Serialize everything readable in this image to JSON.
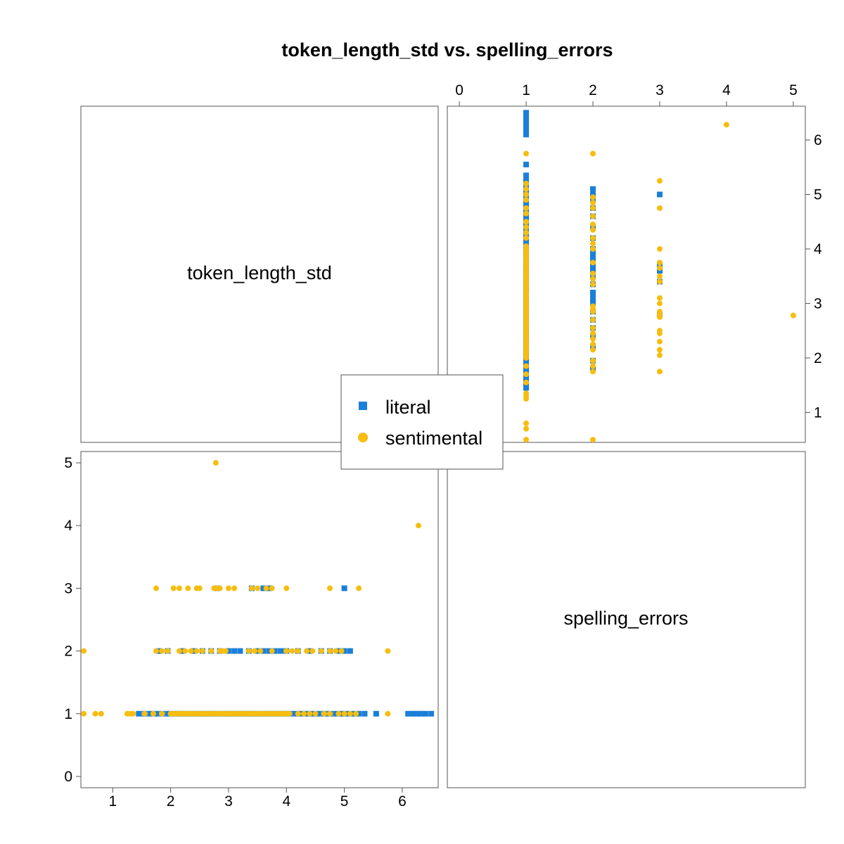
{
  "chart_data": {
    "type": "scatter",
    "title": "token_length_std vs. spelling_errors",
    "variables": [
      "token_length_std",
      "spelling_errors"
    ],
    "axes": {
      "token_length_std": {
        "range": [
          0.45,
          6.62
        ],
        "ticks": [
          1,
          2,
          3,
          4,
          5,
          6
        ]
      },
      "spelling_errors": {
        "range": [
          -0.18,
          5.18
        ],
        "ticks": [
          0,
          1,
          2,
          3,
          4,
          5
        ]
      }
    },
    "legend": {
      "position": "center",
      "entries": [
        {
          "name": "literal",
          "marker": "square"
        },
        {
          "name": "sentimental",
          "marker": "circle"
        }
      ]
    },
    "colors": {
      "literal": "#1a7fd8",
      "sentimental": "#f7bd0f"
    },
    "series": [
      {
        "name": "literal",
        "points": [
          [
            1.45,
            1
          ],
          [
            1.55,
            1
          ],
          [
            1.65,
            1
          ],
          [
            1.75,
            1
          ],
          [
            1.85,
            1
          ],
          [
            1.95,
            1
          ],
          [
            2.05,
            1
          ],
          [
            2.15,
            1
          ],
          [
            2.25,
            1
          ],
          [
            2.35,
            1
          ],
          [
            2.45,
            1
          ],
          [
            2.55,
            1
          ],
          [
            2.65,
            1
          ],
          [
            2.75,
            1
          ],
          [
            2.85,
            1
          ],
          [
            2.95,
            1
          ],
          [
            3.05,
            1
          ],
          [
            3.15,
            1
          ],
          [
            3.25,
            1
          ],
          [
            3.35,
            1
          ],
          [
            3.45,
            1
          ],
          [
            3.55,
            1
          ],
          [
            3.65,
            1
          ],
          [
            3.75,
            1
          ],
          [
            3.85,
            1
          ],
          [
            3.95,
            1
          ],
          [
            4.05,
            1
          ],
          [
            4.15,
            1
          ],
          [
            4.25,
            1
          ],
          [
            4.35,
            1
          ],
          [
            4.45,
            1
          ],
          [
            4.55,
            1
          ],
          [
            4.65,
            1
          ],
          [
            4.75,
            1
          ],
          [
            4.85,
            1
          ],
          [
            4.95,
            1
          ],
          [
            5.05,
            1
          ],
          [
            5.15,
            1
          ],
          [
            5.25,
            1
          ],
          [
            5.35,
            1
          ],
          [
            5.55,
            1
          ],
          [
            6.1,
            1
          ],
          [
            6.18,
            1
          ],
          [
            6.25,
            1
          ],
          [
            6.32,
            1
          ],
          [
            6.4,
            1
          ],
          [
            6.5,
            1
          ],
          [
            1.8,
            2
          ],
          [
            1.95,
            2
          ],
          [
            2.2,
            2
          ],
          [
            2.4,
            2
          ],
          [
            2.55,
            2
          ],
          [
            2.7,
            2
          ],
          [
            2.85,
            2
          ],
          [
            3.0,
            2
          ],
          [
            3.1,
            2
          ],
          [
            3.2,
            2
          ],
          [
            3.35,
            2
          ],
          [
            3.5,
            2
          ],
          [
            3.6,
            2
          ],
          [
            3.7,
            2
          ],
          [
            3.8,
            2
          ],
          [
            3.9,
            2
          ],
          [
            4.0,
            2
          ],
          [
            4.2,
            2
          ],
          [
            4.4,
            2
          ],
          [
            4.6,
            2
          ],
          [
            4.75,
            2
          ],
          [
            4.9,
            2
          ],
          [
            5.0,
            2
          ],
          [
            5.1,
            2
          ],
          [
            2.8,
            3
          ],
          [
            3.4,
            3
          ],
          [
            3.6,
            3
          ],
          [
            3.7,
            3
          ],
          [
            5.0,
            3
          ]
        ]
      },
      {
        "name": "sentimental",
        "points": [
          [
            0.5,
            1
          ],
          [
            0.7,
            1
          ],
          [
            0.8,
            1
          ],
          [
            1.25,
            1
          ],
          [
            1.3,
            1
          ],
          [
            1.35,
            1
          ],
          [
            1.55,
            1
          ],
          [
            1.7,
            1
          ],
          [
            1.85,
            1
          ],
          [
            2.0,
            1
          ],
          [
            2.05,
            1
          ],
          [
            2.1,
            1
          ],
          [
            2.15,
            1
          ],
          [
            2.2,
            1
          ],
          [
            2.25,
            1
          ],
          [
            2.3,
            1
          ],
          [
            2.35,
            1
          ],
          [
            2.4,
            1
          ],
          [
            2.45,
            1
          ],
          [
            2.5,
            1
          ],
          [
            2.55,
            1
          ],
          [
            2.6,
            1
          ],
          [
            2.65,
            1
          ],
          [
            2.7,
            1
          ],
          [
            2.75,
            1
          ],
          [
            2.8,
            1
          ],
          [
            2.85,
            1
          ],
          [
            2.9,
            1
          ],
          [
            2.95,
            1
          ],
          [
            3.0,
            1
          ],
          [
            3.05,
            1
          ],
          [
            3.1,
            1
          ],
          [
            3.15,
            1
          ],
          [
            3.2,
            1
          ],
          [
            3.25,
            1
          ],
          [
            3.3,
            1
          ],
          [
            3.35,
            1
          ],
          [
            3.4,
            1
          ],
          [
            3.45,
            1
          ],
          [
            3.5,
            1
          ],
          [
            3.55,
            1
          ],
          [
            3.6,
            1
          ],
          [
            3.65,
            1
          ],
          [
            3.7,
            1
          ],
          [
            3.75,
            1
          ],
          [
            3.8,
            1
          ],
          [
            3.85,
            1
          ],
          [
            3.9,
            1
          ],
          [
            3.95,
            1
          ],
          [
            4.0,
            1
          ],
          [
            4.05,
            1
          ],
          [
            4.2,
            1
          ],
          [
            4.3,
            1
          ],
          [
            4.4,
            1
          ],
          [
            4.5,
            1
          ],
          [
            4.65,
            1
          ],
          [
            4.75,
            1
          ],
          [
            4.9,
            1
          ],
          [
            5.0,
            1
          ],
          [
            5.1,
            1
          ],
          [
            5.2,
            1
          ],
          [
            5.75,
            1
          ],
          [
            0.5,
            2
          ],
          [
            1.75,
            2
          ],
          [
            1.85,
            2
          ],
          [
            1.95,
            2
          ],
          [
            2.15,
            2
          ],
          [
            2.25,
            2
          ],
          [
            2.35,
            2
          ],
          [
            2.45,
            2
          ],
          [
            2.55,
            2
          ],
          [
            2.7,
            2
          ],
          [
            2.85,
            2
          ],
          [
            2.9,
            2
          ],
          [
            2.95,
            2
          ],
          [
            3.35,
            2
          ],
          [
            3.45,
            2
          ],
          [
            3.55,
            2
          ],
          [
            3.75,
            2
          ],
          [
            4.0,
            2
          ],
          [
            4.1,
            2
          ],
          [
            4.2,
            2
          ],
          [
            4.35,
            2
          ],
          [
            4.45,
            2
          ],
          [
            4.6,
            2
          ],
          [
            4.75,
            2
          ],
          [
            4.85,
            2
          ],
          [
            4.95,
            2
          ],
          [
            5.75,
            2
          ],
          [
            1.75,
            3
          ],
          [
            2.05,
            3
          ],
          [
            2.15,
            3
          ],
          [
            2.3,
            3
          ],
          [
            2.45,
            3
          ],
          [
            2.5,
            3
          ],
          [
            2.75,
            3
          ],
          [
            2.8,
            3
          ],
          [
            2.85,
            3
          ],
          [
            3.0,
            3
          ],
          [
            3.1,
            3
          ],
          [
            3.4,
            3
          ],
          [
            3.5,
            3
          ],
          [
            3.65,
            3
          ],
          [
            3.75,
            3
          ],
          [
            4.0,
            3
          ],
          [
            4.75,
            3
          ],
          [
            5.25,
            3
          ],
          [
            6.28,
            4
          ],
          [
            2.78,
            5
          ]
        ]
      }
    ]
  }
}
